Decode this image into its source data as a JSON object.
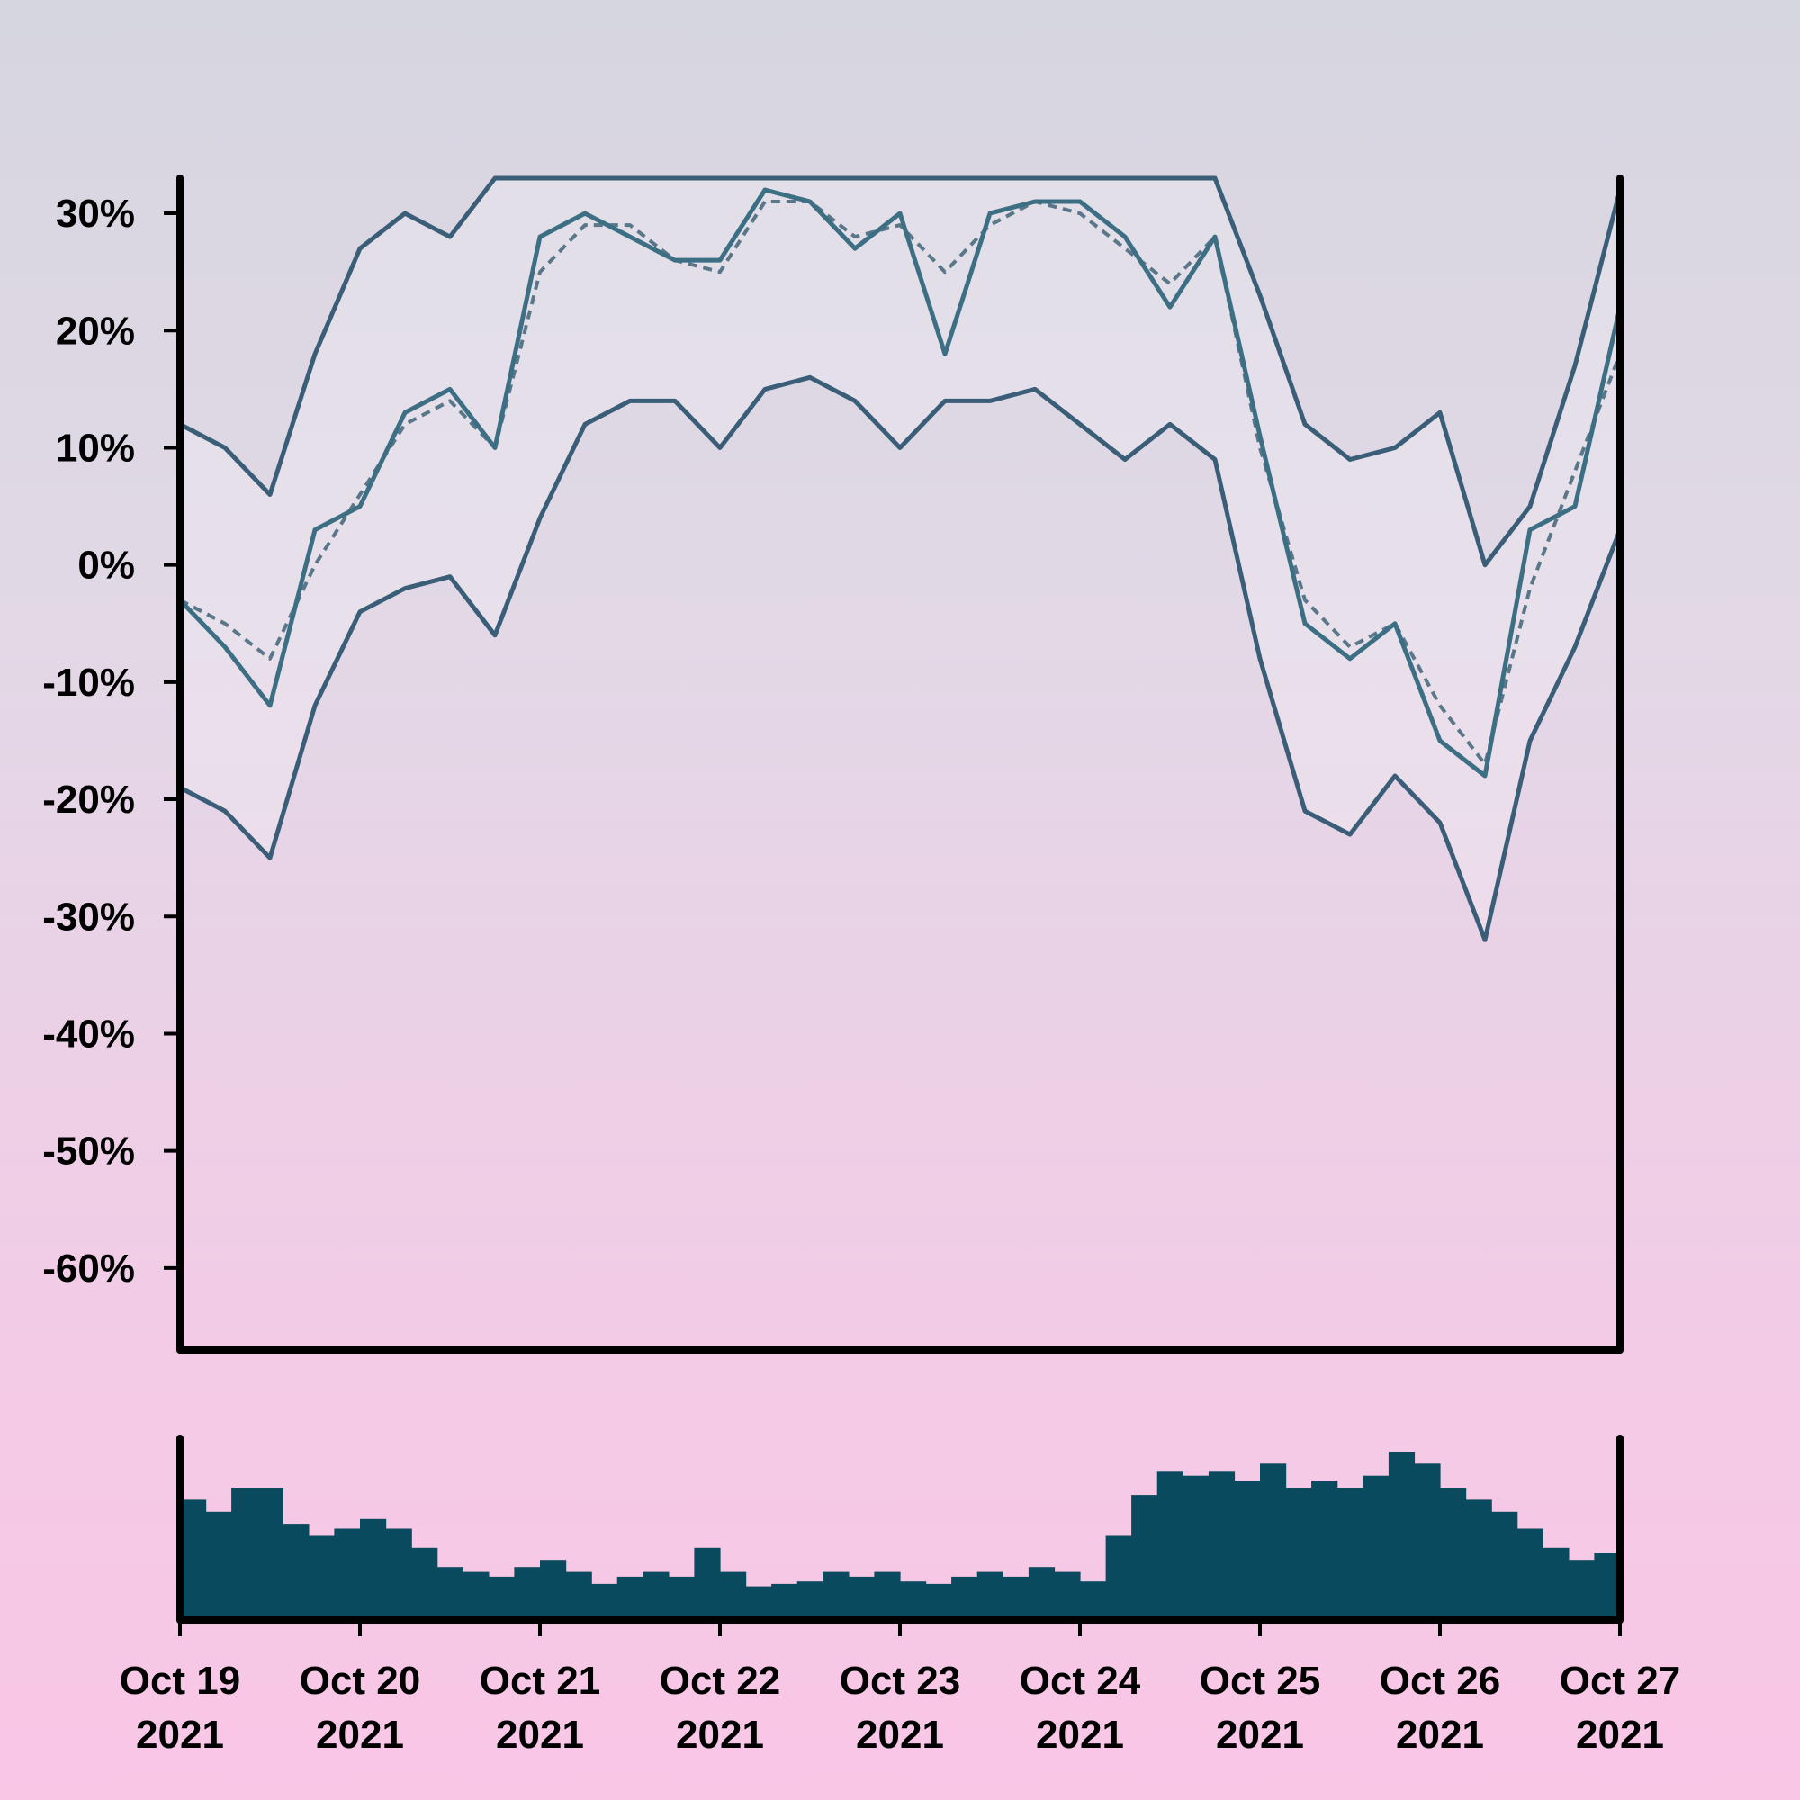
{
  "colors": {
    "line": "#3a5e78",
    "price": "#3d6f84",
    "ma": "#5a7689",
    "volume": "#0a4a5e",
    "axis": "#000000",
    "bg_top": "#d6d6e0",
    "bg_bottom": "#f9c6e6"
  },
  "chart_data": {
    "type": "line",
    "title": "",
    "xlabel": "",
    "ylabel": "",
    "ylim": [
      -67,
      33
    ],
    "grid": false,
    "legend": "none",
    "y_tick_values": [
      30,
      20,
      10,
      0,
      -10,
      -20,
      -30,
      -40,
      -50,
      -60
    ],
    "y_tick_labels": [
      "30%",
      "20%",
      "10%",
      "0%",
      "-10%",
      "-20%",
      "-30%",
      "-40%",
      "-50%",
      "-60%"
    ],
    "x_ticks": [
      {
        "date": "2021-10-19",
        "line1": "Oct 19",
        "line2": "2021"
      },
      {
        "date": "2021-10-20",
        "line1": "Oct 20",
        "line2": "2021"
      },
      {
        "date": "2021-10-21",
        "line1": "Oct 21",
        "line2": "2021"
      },
      {
        "date": "2021-10-22",
        "line1": "Oct 22",
        "line2": "2021"
      },
      {
        "date": "2021-10-23",
        "line1": "Oct 23",
        "line2": "2021"
      },
      {
        "date": "2021-10-24",
        "line1": "Oct 24",
        "line2": "2021"
      },
      {
        "date": "2021-10-25",
        "line1": "Oct 25",
        "line2": "2021"
      },
      {
        "date": "2021-10-26",
        "line1": "Oct 26",
        "line2": "2021"
      },
      {
        "date": "2021-10-27",
        "line1": "Oct 27",
        "line2": "2021"
      }
    ],
    "x": [
      "2021-10-19 00:00",
      "2021-10-19 06:00",
      "2021-10-19 12:00",
      "2021-10-19 18:00",
      "2021-10-20 00:00",
      "2021-10-20 06:00",
      "2021-10-20 12:00",
      "2021-10-20 18:00",
      "2021-10-21 00:00",
      "2021-10-21 06:00",
      "2021-10-21 12:00",
      "2021-10-21 18:00",
      "2021-10-22 00:00",
      "2021-10-22 06:00",
      "2021-10-22 12:00",
      "2021-10-22 18:00",
      "2021-10-23 00:00",
      "2021-10-23 06:00",
      "2021-10-23 12:00",
      "2021-10-23 18:00",
      "2021-10-24 00:00",
      "2021-10-24 06:00",
      "2021-10-24 12:00",
      "2021-10-24 18:00",
      "2021-10-25 00:00",
      "2021-10-25 06:00",
      "2021-10-25 12:00",
      "2021-10-25 18:00",
      "2021-10-26 00:00",
      "2021-10-26 06:00",
      "2021-10-26 12:00",
      "2021-10-26 18:00",
      "2021-10-27 00:00"
    ],
    "series": [
      {
        "role": "price",
        "values": [
          -3,
          -7,
          -12,
          3,
          5,
          13,
          15,
          10,
          28,
          30,
          28,
          26,
          26,
          32,
          31,
          27,
          30,
          18,
          30,
          31,
          31,
          28,
          22,
          28,
          11,
          -5,
          -8,
          -5,
          -15,
          -18,
          3,
          5,
          22
        ]
      },
      {
        "role": "moving-average",
        "values": [
          -3,
          -5,
          -8,
          0,
          6,
          12,
          14,
          10,
          25,
          29,
          29,
          26,
          25,
          31,
          31,
          28,
          29,
          25,
          29,
          31,
          30,
          27,
          24,
          28,
          10,
          -3,
          -7,
          -5,
          -12,
          -17,
          -2,
          8,
          18
        ]
      },
      {
        "role": "upper-band",
        "values": [
          12,
          10,
          6,
          18,
          27,
          30,
          28,
          33,
          33,
          33,
          33,
          33,
          33,
          33,
          33,
          33,
          33,
          33,
          33,
          33,
          33,
          33,
          33,
          33,
          23,
          12,
          9,
          10,
          13,
          0,
          5,
          17,
          32
        ]
      },
      {
        "role": "lower-band",
        "values": [
          -19,
          -21,
          -25,
          -12,
          -4,
          -2,
          -1,
          -6,
          4,
          12,
          14,
          14,
          10,
          15,
          16,
          14,
          10,
          14,
          14,
          15,
          12,
          9,
          12,
          9,
          -8,
          -21,
          -23,
          -18,
          -22,
          -32,
          -15,
          -7,
          3
        ]
      }
    ],
    "volume_values": [
      50,
      45,
      55,
      55,
      40,
      35,
      38,
      42,
      38,
      30,
      22,
      20,
      18,
      22,
      25,
      20,
      15,
      18,
      20,
      18,
      30,
      20,
      14,
      15,
      16,
      20,
      18,
      20,
      16,
      15,
      18,
      20,
      18,
      22,
      20,
      16,
      35,
      52,
      62,
      60,
      62,
      58,
      65,
      55,
      58,
      55,
      60,
      70,
      65,
      55,
      50,
      45,
      38,
      30,
      25,
      28
    ]
  }
}
